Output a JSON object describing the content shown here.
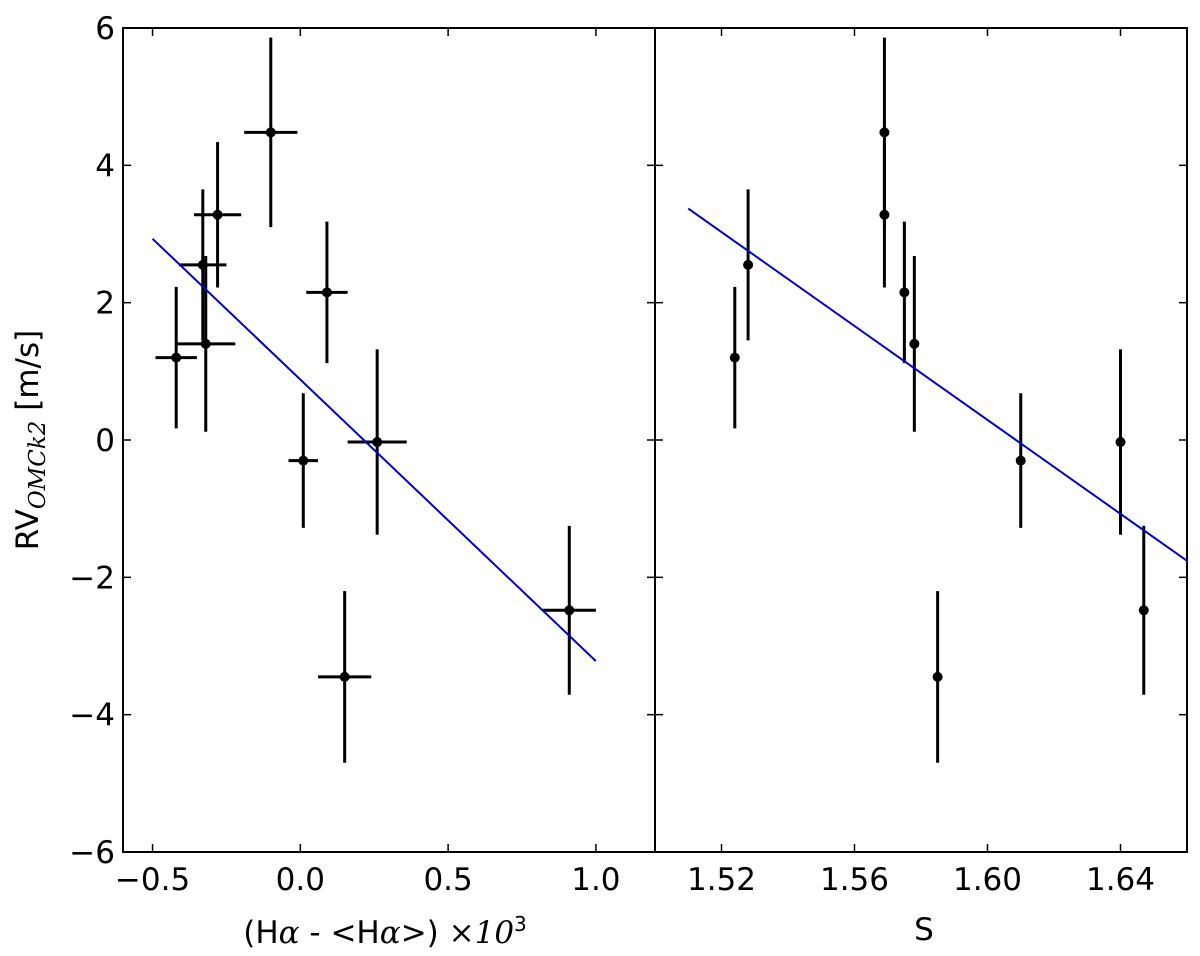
{
  "chart_data": [
    {
      "type": "scatter",
      "xlabel_parts": [
        "(H",
        "α",
        " - <H",
        "α",
        ">) ",
        "×10",
        "3"
      ],
      "ylabel_parts": [
        "RV",
        "OMCk2",
        " [m/s]"
      ],
      "xlim": [
        -0.6,
        1.2
      ],
      "ylim": [
        -6,
        6
      ],
      "x_ticks": [
        -0.5,
        0.0,
        0.5,
        1.0
      ],
      "x_tick_labels": [
        "−0.5",
        "0.0",
        "0.5",
        "1.0"
      ],
      "y_ticks": [
        -6,
        -4,
        -2,
        0,
        2,
        4,
        6
      ],
      "y_tick_labels": [
        "−6",
        "−4",
        "−2",
        "0",
        "2",
        "4",
        "6"
      ],
      "points": [
        {
          "x": -0.42,
          "y": 1.2,
          "xerr": 0.07,
          "yerr": 1.03
        },
        {
          "x": -0.33,
          "y": 2.55,
          "xerr": 0.08,
          "yerr": 1.1
        },
        {
          "x": -0.32,
          "y": 1.4,
          "xerr": 0.1,
          "yerr": 1.28
        },
        {
          "x": -0.28,
          "y": 3.28,
          "xerr": 0.08,
          "yerr": 1.06
        },
        {
          "x": -0.1,
          "y": 4.48,
          "xerr": 0.09,
          "yerr": 1.38
        },
        {
          "x": 0.01,
          "y": -0.3,
          "xerr": 0.05,
          "yerr": 0.98
        },
        {
          "x": 0.09,
          "y": 2.15,
          "xerr": 0.07,
          "yerr": 1.03
        },
        {
          "x": 0.15,
          "y": -3.45,
          "xerr": 0.09,
          "yerr": 1.25
        },
        {
          "x": 0.26,
          "y": -0.03,
          "xerr": 0.1,
          "yerr": 1.35
        },
        {
          "x": 0.91,
          "y": -2.48,
          "xerr": 0.09,
          "yerr": 1.23
        }
      ],
      "fit_line": {
        "x": [
          -0.5,
          1.0
        ],
        "y": [
          2.93,
          -3.22
        ],
        "color": "#0000cc"
      },
      "marker_color": "#000000"
    },
    {
      "type": "scatter",
      "xlabel": "S",
      "xlim": [
        1.5,
        1.66
      ],
      "ylim": [
        -6,
        6
      ],
      "x_ticks": [
        1.52,
        1.56,
        1.6,
        1.64
      ],
      "x_tick_labels": [
        "1.52",
        "1.56",
        "1.60",
        "1.64"
      ],
      "y_ticks": [
        -6,
        -4,
        -2,
        0,
        2,
        4,
        6
      ],
      "points": [
        {
          "x": 1.524,
          "y": 1.2,
          "yerr": 1.03
        },
        {
          "x": 1.528,
          "y": 2.55,
          "yerr": 1.1
        },
        {
          "x": 1.569,
          "y": 4.48,
          "yerr": 1.38
        },
        {
          "x": 1.569,
          "y": 3.28,
          "yerr": 1.06
        },
        {
          "x": 1.575,
          "y": 2.15,
          "yerr": 1.03
        },
        {
          "x": 1.578,
          "y": 1.4,
          "yerr": 1.28
        },
        {
          "x": 1.585,
          "y": -3.45,
          "yerr": 1.25
        },
        {
          "x": 1.61,
          "y": -0.3,
          "yerr": 0.98
        },
        {
          "x": 1.64,
          "y": -0.03,
          "yerr": 1.35
        },
        {
          "x": 1.647,
          "y": -2.48,
          "yerr": 1.23
        }
      ],
      "fit_line": {
        "x": [
          1.51,
          1.66
        ],
        "y": [
          3.37,
          -1.76
        ],
        "color": "#0000cc"
      },
      "marker_color": "#000000"
    }
  ]
}
